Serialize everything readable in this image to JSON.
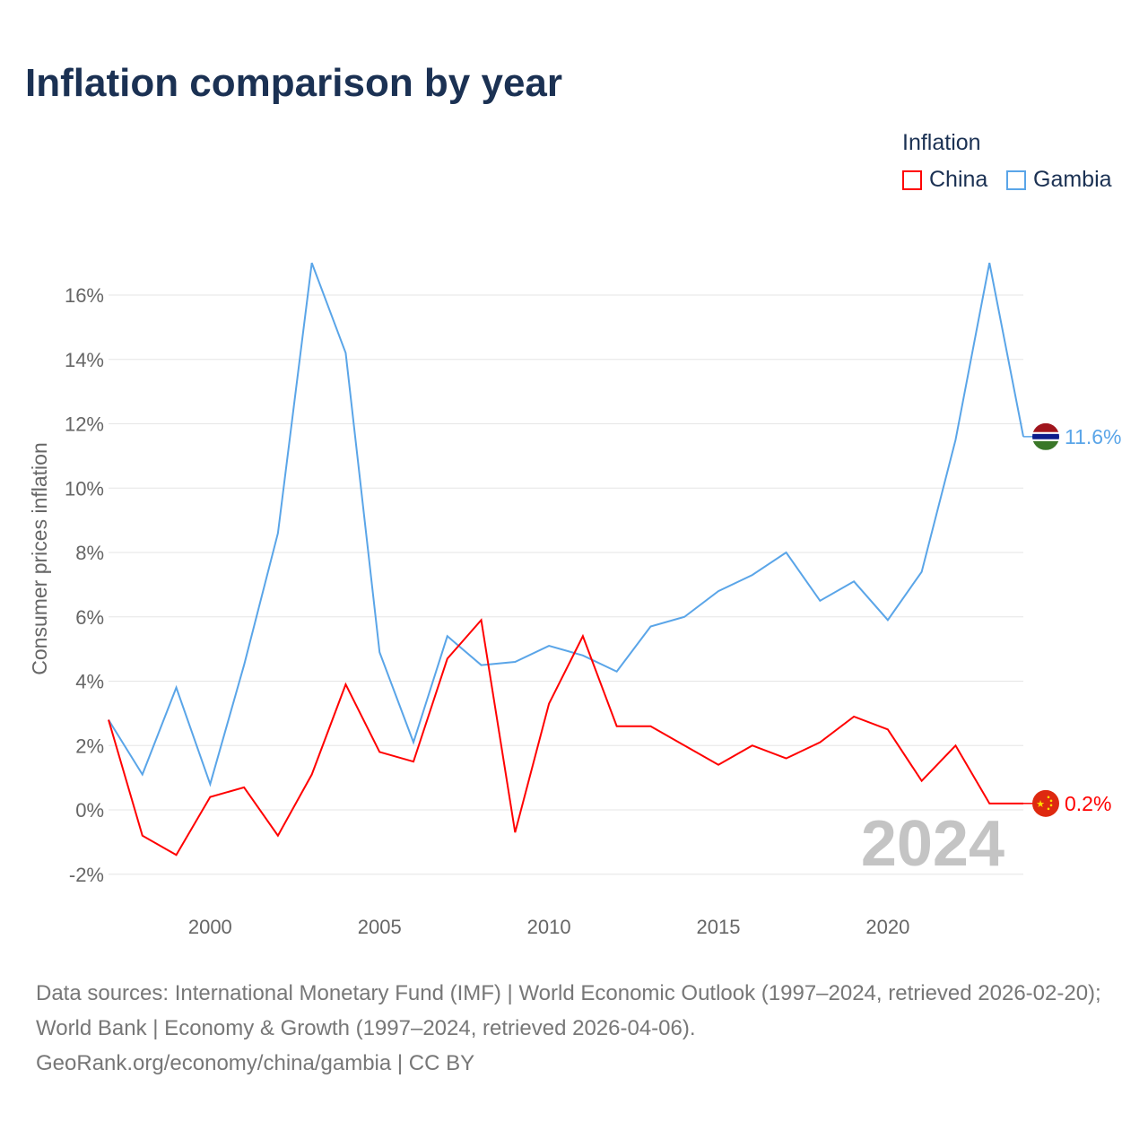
{
  "title": "Inflation comparison by year",
  "legend": {
    "title": "Inflation",
    "items": [
      {
        "label": "China",
        "color": "#ff0000"
      },
      {
        "label": "Gambia",
        "color": "#5aa5e8"
      }
    ]
  },
  "source": {
    "line1": "Data sources: International Monetary Fund (IMF) | World Economic Outlook (1997–2024, retrieved 2026-02-20); World Bank | Economy & Growth (1997–2024, retrieved 2026-04-06).",
    "line2": "GeoRank.org/economy/china/gambia | CC BY"
  },
  "chart_data": {
    "type": "line",
    "ylabel": "Consumer prices inflation",
    "xlabel": "",
    "ylim": [
      -2,
      17
    ],
    "xlim": [
      1997,
      2024
    ],
    "yticks": [
      -2,
      0,
      2,
      4,
      6,
      8,
      10,
      12,
      14,
      16
    ],
    "ytick_labels": [
      "-2%",
      "0%",
      "2%",
      "4%",
      "6%",
      "8%",
      "10%",
      "12%",
      "14%",
      "16%"
    ],
    "xticks": [
      2000,
      2005,
      2010,
      2015,
      2020
    ],
    "xtick_labels": [
      "2000",
      "2005",
      "2010",
      "2015",
      "2020"
    ],
    "grid": true,
    "year_watermark": "2024",
    "x": [
      1997,
      1998,
      1999,
      2000,
      2001,
      2002,
      2003,
      2004,
      2005,
      2006,
      2007,
      2008,
      2009,
      2010,
      2011,
      2012,
      2013,
      2014,
      2015,
      2016,
      2017,
      2018,
      2019,
      2020,
      2021,
      2022,
      2023,
      2024
    ],
    "series": [
      {
        "name": "Gambia",
        "color": "#5aa5e8",
        "end_label": "11.6%",
        "values": [
          2.8,
          1.1,
          3.8,
          0.8,
          4.5,
          8.6,
          17.0,
          14.2,
          4.9,
          2.1,
          5.4,
          4.5,
          4.6,
          5.1,
          4.8,
          4.3,
          5.7,
          6.0,
          6.8,
          7.3,
          8.0,
          6.5,
          7.1,
          5.9,
          7.4,
          11.5,
          17.0,
          11.6
        ]
      },
      {
        "name": "China",
        "color": "#ff0000",
        "end_label": "0.2%",
        "values": [
          2.8,
          -0.8,
          -1.4,
          0.4,
          0.7,
          -0.8,
          1.1,
          3.9,
          1.8,
          1.5,
          4.7,
          5.9,
          -0.7,
          3.3,
          5.4,
          2.6,
          2.6,
          2.0,
          1.4,
          2.0,
          1.6,
          2.1,
          2.9,
          2.5,
          0.9,
          2.0,
          0.2,
          0.2
        ]
      }
    ]
  }
}
